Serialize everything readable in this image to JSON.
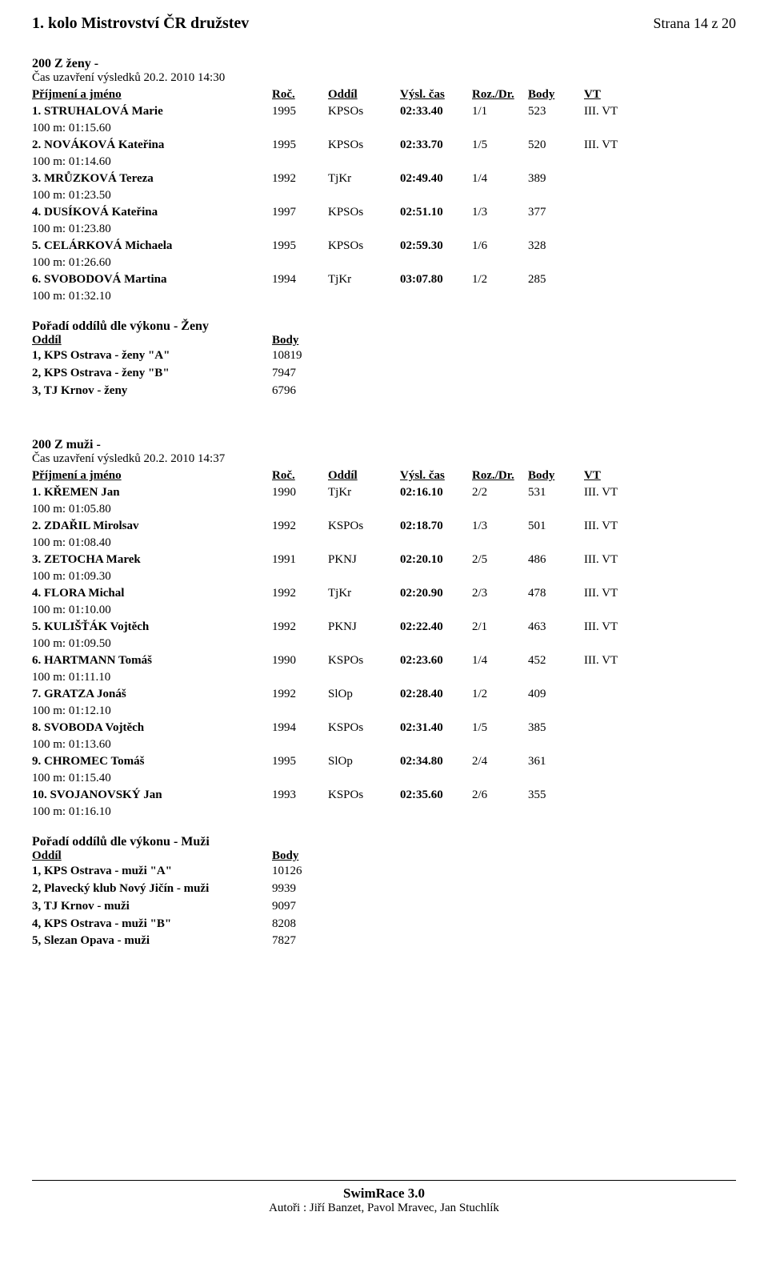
{
  "header": {
    "title": "1. kolo Mistrovství ČR družstev",
    "page": "Strana 14 z 20"
  },
  "columns": {
    "c1": "Příjmení a jméno",
    "c2": "Roč.",
    "c3": "Oddíl",
    "c4": "Výsl. čas",
    "c5": "Roz./Dr.",
    "c6": "Body",
    "c7": "VT"
  },
  "event_women": {
    "title": "200 Z ženy -",
    "closing": "Čas uzavření výsledků 20.2. 2010 14:30",
    "rows": [
      {
        "name": "1. STRUHALOVÁ Marie",
        "year": "1995",
        "club": "KPSOs",
        "time": "02:33.40",
        "lane": "1/1",
        "body": "523",
        "vt": "III. VT",
        "split": "100 m: 01:15.60"
      },
      {
        "name": "2. NOVÁKOVÁ Kateřina",
        "year": "1995",
        "club": "KPSOs",
        "time": "02:33.70",
        "lane": "1/5",
        "body": "520",
        "vt": "III. VT",
        "split": "100 m: 01:14.60"
      },
      {
        "name": "3. MRŮZKOVÁ Tereza",
        "year": "1992",
        "club": "TjKr",
        "time": "02:49.40",
        "lane": "1/4",
        "body": "389",
        "vt": "",
        "split": "100 m: 01:23.50"
      },
      {
        "name": "4. DUSÍKOVÁ Kateřina",
        "year": "1997",
        "club": "KPSOs",
        "time": "02:51.10",
        "lane": "1/3",
        "body": "377",
        "vt": "",
        "split": "100 m: 01:23.80"
      },
      {
        "name": "5. CELÁRKOVÁ Michaela",
        "year": "1995",
        "club": "KPSOs",
        "time": "02:59.30",
        "lane": "1/6",
        "body": "328",
        "vt": "",
        "split": "100 m: 01:26.60"
      },
      {
        "name": "6. SVOBODOVÁ Martina",
        "year": "1994",
        "club": "TjKr",
        "time": "03:07.80",
        "lane": "1/2",
        "body": "285",
        "vt": "",
        "split": "100 m: 01:32.10"
      }
    ]
  },
  "standings_women": {
    "title": "Pořadí oddílů dle výkonu - Ženy",
    "col1": "Oddíl",
    "col2": "Body",
    "rows": [
      {
        "name": "1, KPS Ostrava - ženy \"A\"",
        "body": "10819"
      },
      {
        "name": "2, KPS Ostrava - ženy \"B\"",
        "body": "7947"
      },
      {
        "name": "3, TJ Krnov - ženy",
        "body": "6796"
      }
    ]
  },
  "event_men": {
    "title": "200 Z muži -",
    "closing": "Čas uzavření výsledků 20.2. 2010 14:37",
    "rows": [
      {
        "name": "1. KŘEMEN Jan",
        "year": "1990",
        "club": "TjKr",
        "time": "02:16.10",
        "lane": "2/2",
        "body": "531",
        "vt": "III. VT",
        "split": "100 m: 01:05.80"
      },
      {
        "name": "2. ZDAŘIL Mirolsav",
        "year": "1992",
        "club": "KSPOs",
        "time": "02:18.70",
        "lane": "1/3",
        "body": "501",
        "vt": "III. VT",
        "split": "100 m: 01:08.40"
      },
      {
        "name": "3. ZETOCHA Marek",
        "year": "1991",
        "club": "PKNJ",
        "time": "02:20.10",
        "lane": "2/5",
        "body": "486",
        "vt": "III. VT",
        "split": "100 m: 01:09.30"
      },
      {
        "name": "4. FLORA Michal",
        "year": "1992",
        "club": "TjKr",
        "time": "02:20.90",
        "lane": "2/3",
        "body": "478",
        "vt": "III. VT",
        "split": "100 m: 01:10.00"
      },
      {
        "name": "5. KULIŠŤÁK Vojtěch",
        "year": "1992",
        "club": "PKNJ",
        "time": "02:22.40",
        "lane": "2/1",
        "body": "463",
        "vt": "III. VT",
        "split": "100 m: 01:09.50"
      },
      {
        "name": "6. HARTMANN Tomáš",
        "year": "1990",
        "club": "KSPOs",
        "time": "02:23.60",
        "lane": "1/4",
        "body": "452",
        "vt": "III. VT",
        "split": "100 m: 01:11.10"
      },
      {
        "name": "7. GRATZA Jonáš",
        "year": "1992",
        "club": "SlOp",
        "time": "02:28.40",
        "lane": "1/2",
        "body": "409",
        "vt": "",
        "split": "100 m: 01:12.10"
      },
      {
        "name": "8. SVOBODA Vojtěch",
        "year": "1994",
        "club": "KSPOs",
        "time": "02:31.40",
        "lane": "1/5",
        "body": "385",
        "vt": "",
        "split": "100 m: 01:13.60"
      },
      {
        "name": "9. CHROMEC Tomáš",
        "year": "1995",
        "club": "SlOp",
        "time": "02:34.80",
        "lane": "2/4",
        "body": "361",
        "vt": "",
        "split": "100 m: 01:15.40"
      },
      {
        "name": "10. SVOJANOVSKÝ Jan",
        "year": "1993",
        "club": "KSPOs",
        "time": "02:35.60",
        "lane": "2/6",
        "body": "355",
        "vt": "",
        "split": "100 m: 01:16.10"
      }
    ]
  },
  "standings_men": {
    "title": "Pořadí oddílů dle výkonu - Muži",
    "col1": "Oddíl",
    "col2": "Body",
    "rows": [
      {
        "name": "1, KPS Ostrava - muži \"A\"",
        "body": "10126"
      },
      {
        "name": "2, Plavecký klub Nový Jičín - muži",
        "body": "9939"
      },
      {
        "name": "3, TJ Krnov - muži",
        "body": "9097"
      },
      {
        "name": "4, KPS Ostrava - muži \"B\"",
        "body": "8208"
      },
      {
        "name": "5, Slezan Opava - muži",
        "body": "7827"
      }
    ]
  },
  "footer": {
    "app": "SwimRace 3.0",
    "authors": "Autoři : Jiří Banzet, Pavol Mravec, Jan Stuchlík"
  }
}
